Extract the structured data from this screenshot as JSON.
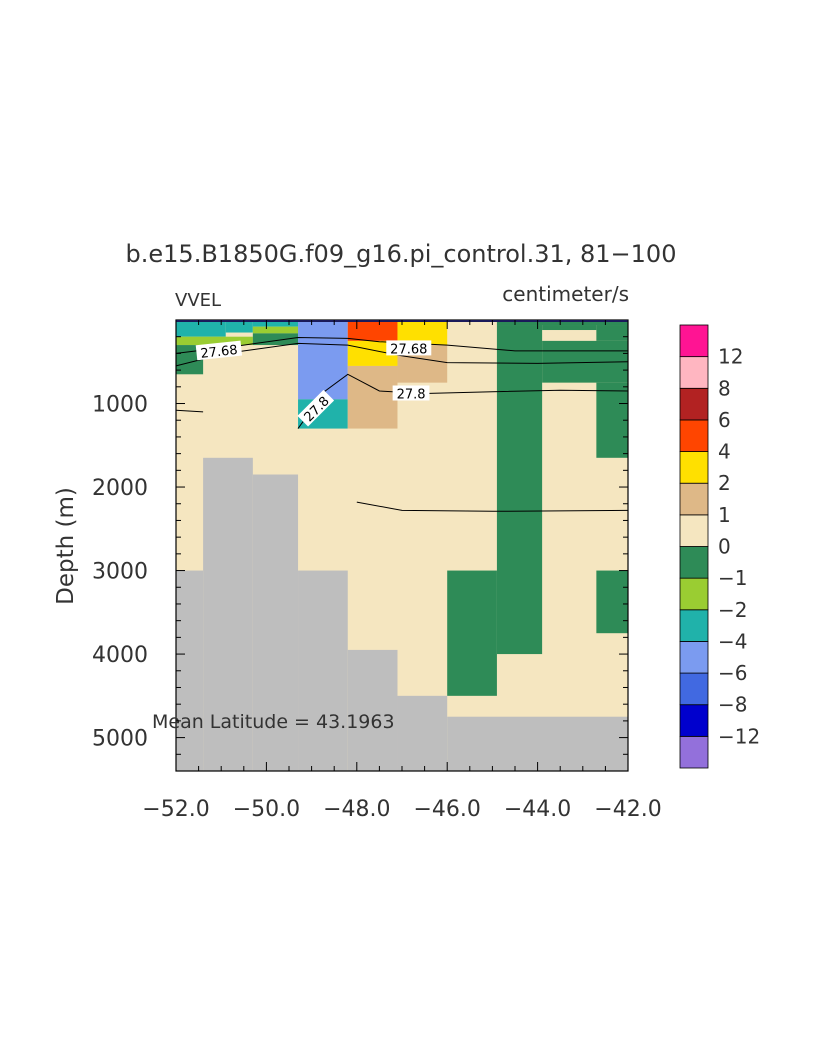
{
  "chart_data": {
    "type": "heatmap",
    "title": "b.e15.B1850G.f09_g16.pi_control.31, 81−100",
    "left_label": "VVEL",
    "right_label": "centimeter/s",
    "ylabel": "Depth (m)",
    "annotation": "Mean Latitude = 43.1963",
    "xlim": [
      -52.0,
      -42.0
    ],
    "ylim": [
      5400,
      0
    ],
    "xticks": [
      "−52.0",
      "−50.0",
      "−48.0",
      "−46.0",
      "−44.0",
      "−42.0"
    ],
    "xtick_values": [
      -52,
      -50,
      -48,
      -46,
      -44,
      -42
    ],
    "yticks": [
      "1000",
      "2000",
      "3000",
      "4000",
      "5000"
    ],
    "ytick_values": [
      1000,
      2000,
      3000,
      4000,
      5000
    ],
    "legend": {
      "placement": "right",
      "labels": [
        "−12",
        "−8",
        "−6",
        "−4",
        "−2",
        "−1",
        "0",
        "1",
        "2",
        "4",
        "6",
        "8",
        "12"
      ],
      "colors": [
        "#9370DB",
        "#0000CD",
        "#4169E1",
        "#7B9BF0",
        "#20B2AA",
        "#9ACD32",
        "#2E8B57",
        "#F5E6C0",
        "#DEB887",
        "#FFE000",
        "#FF4500",
        "#B22222",
        "#FFB6C1",
        "#FF1493"
      ]
    },
    "land_color": "#BEBEBE",
    "cells": [
      {
        "x": [
          -52.0,
          -50.9
        ],
        "y": [
          0,
          200
        ],
        "c": "#20B2AA"
      },
      {
        "x": [
          -50.9,
          -50.3
        ],
        "y": [
          0,
          150
        ],
        "c": "#20B2AA"
      },
      {
        "x": [
          -50.3,
          -49.3
        ],
        "y": [
          0,
          80
        ],
        "c": "#20B2AA"
      },
      {
        "x": [
          -52.0,
          -50.3
        ],
        "y": [
          200,
          300
        ],
        "c": "#9ACD32"
      },
      {
        "x": [
          -50.3,
          -49.3
        ],
        "y": [
          80,
          160
        ],
        "c": "#9ACD32"
      },
      {
        "x": [
          -52.0,
          -51.4
        ],
        "y": [
          300,
          650
        ],
        "c": "#2E8B57"
      },
      {
        "x": [
          -50.3,
          -49.3
        ],
        "y": [
          160,
          300
        ],
        "c": "#2E8B57"
      },
      {
        "x": [
          -49.3,
          -48.2
        ],
        "y": [
          0,
          950
        ],
        "c": "#7B9BF0"
      },
      {
        "x": [
          -49.3,
          -48.2
        ],
        "y": [
          950,
          1300
        ],
        "c": "#20B2AA"
      },
      {
        "x": [
          -48.2,
          -47.1
        ],
        "y": [
          0,
          250
        ],
        "c": "#FF4500"
      },
      {
        "x": [
          -48.2,
          -47.1
        ],
        "y": [
          250,
          550
        ],
        "c": "#FFE000"
      },
      {
        "x": [
          -48.2,
          -47.1
        ],
        "y": [
          550,
          1300
        ],
        "c": "#DEB887"
      },
      {
        "x": [
          -47.1,
          -46.0
        ],
        "y": [
          0,
          300
        ],
        "c": "#FFE000"
      },
      {
        "x": [
          -47.1,
          -46.0
        ],
        "y": [
          300,
          750
        ],
        "c": "#DEB887"
      },
      {
        "x": [
          -44.9,
          -42.0
        ],
        "y": [
          0,
          60
        ],
        "c": "#2E8B57"
      },
      {
        "x": [
          -44.9,
          -43.9
        ],
        "y": [
          60,
          4000
        ],
        "c": "#2E8B57"
      },
      {
        "x": [
          -43.9,
          -42.7
        ],
        "y": [
          60,
          120
        ],
        "c": "#2E8B57"
      },
      {
        "x": [
          -42.7,
          -42.0
        ],
        "y": [
          60,
          250
        ],
        "c": "#2E8B57"
      },
      {
        "x": [
          -43.9,
          -42.0
        ],
        "y": [
          250,
          750
        ],
        "c": "#2E8B57"
      },
      {
        "x": [
          -42.7,
          -42.0
        ],
        "y": [
          750,
          1650
        ],
        "c": "#2E8B57"
      },
      {
        "x": [
          -46.0,
          -44.9
        ],
        "y": [
          3000,
          4500
        ],
        "c": "#2E8B57"
      },
      {
        "x": [
          -42.7,
          -42.0
        ],
        "y": [
          3000,
          3750
        ],
        "c": "#2E8B57"
      }
    ],
    "land": [
      {
        "x": [
          -52.0,
          -51.4
        ],
        "y": [
          3000,
          5400
        ]
      },
      {
        "x": [
          -51.4,
          -50.3
        ],
        "y": [
          1650,
          5400
        ]
      },
      {
        "x": [
          -50.3,
          -49.3
        ],
        "y": [
          1850,
          5400
        ]
      },
      {
        "x": [
          -49.3,
          -48.2
        ],
        "y": [
          3000,
          5400
        ]
      },
      {
        "x": [
          -48.2,
          -47.1
        ],
        "y": [
          3950,
          5400
        ]
      },
      {
        "x": [
          -47.1,
          -46.0
        ],
        "y": [
          4500,
          5400
        ]
      },
      {
        "x": [
          -46.0,
          -42.0
        ],
        "y": [
          4750,
          5400
        ]
      }
    ],
    "contours": [
      {
        "points": [
          [
            -52.0,
            400
          ],
          [
            -50.5,
            300
          ],
          [
            -49.3,
            210
          ],
          [
            -48.2,
            220
          ],
          [
            -47.5,
            260
          ],
          [
            -46.0,
            300
          ],
          [
            -44.5,
            370
          ],
          [
            -42.0,
            370
          ]
        ]
      },
      {
        "points": [
          [
            -52.0,
            550
          ],
          [
            -50.9,
            400
          ],
          [
            -49.3,
            280
          ],
          [
            -48.2,
            300
          ],
          [
            -47.1,
            420
          ],
          [
            -46.0,
            510
          ],
          [
            -44.0,
            520
          ],
          [
            -42.0,
            500
          ]
        ]
      },
      {
        "points": [
          [
            -49.3,
            1300
          ],
          [
            -48.7,
            850
          ],
          [
            -48.2,
            650
          ],
          [
            -47.5,
            850
          ],
          [
            -46.5,
            880
          ],
          [
            -45.0,
            860
          ],
          [
            -43.5,
            840
          ],
          [
            -42.0,
            850
          ]
        ]
      },
      {
        "points": [
          [
            -52.0,
            1080
          ],
          [
            -51.4,
            1100
          ]
        ]
      },
      {
        "points": [
          [
            -48.0,
            2180
          ],
          [
            -47.0,
            2280
          ],
          [
            -45.0,
            2290
          ],
          [
            -42.0,
            2280
          ]
        ]
      }
    ],
    "contour_labels": [
      {
        "text": "27.68",
        "x": -51.05,
        "y": 370,
        "rotate": -6
      },
      {
        "text": "27.68",
        "x": -46.85,
        "y": 340,
        "rotate": 0
      },
      {
        "text": "27.8",
        "x": -46.8,
        "y": 880,
        "rotate": 0
      },
      {
        "text": "27.8",
        "x": -48.9,
        "y": 1060,
        "rotate": -45
      }
    ]
  }
}
